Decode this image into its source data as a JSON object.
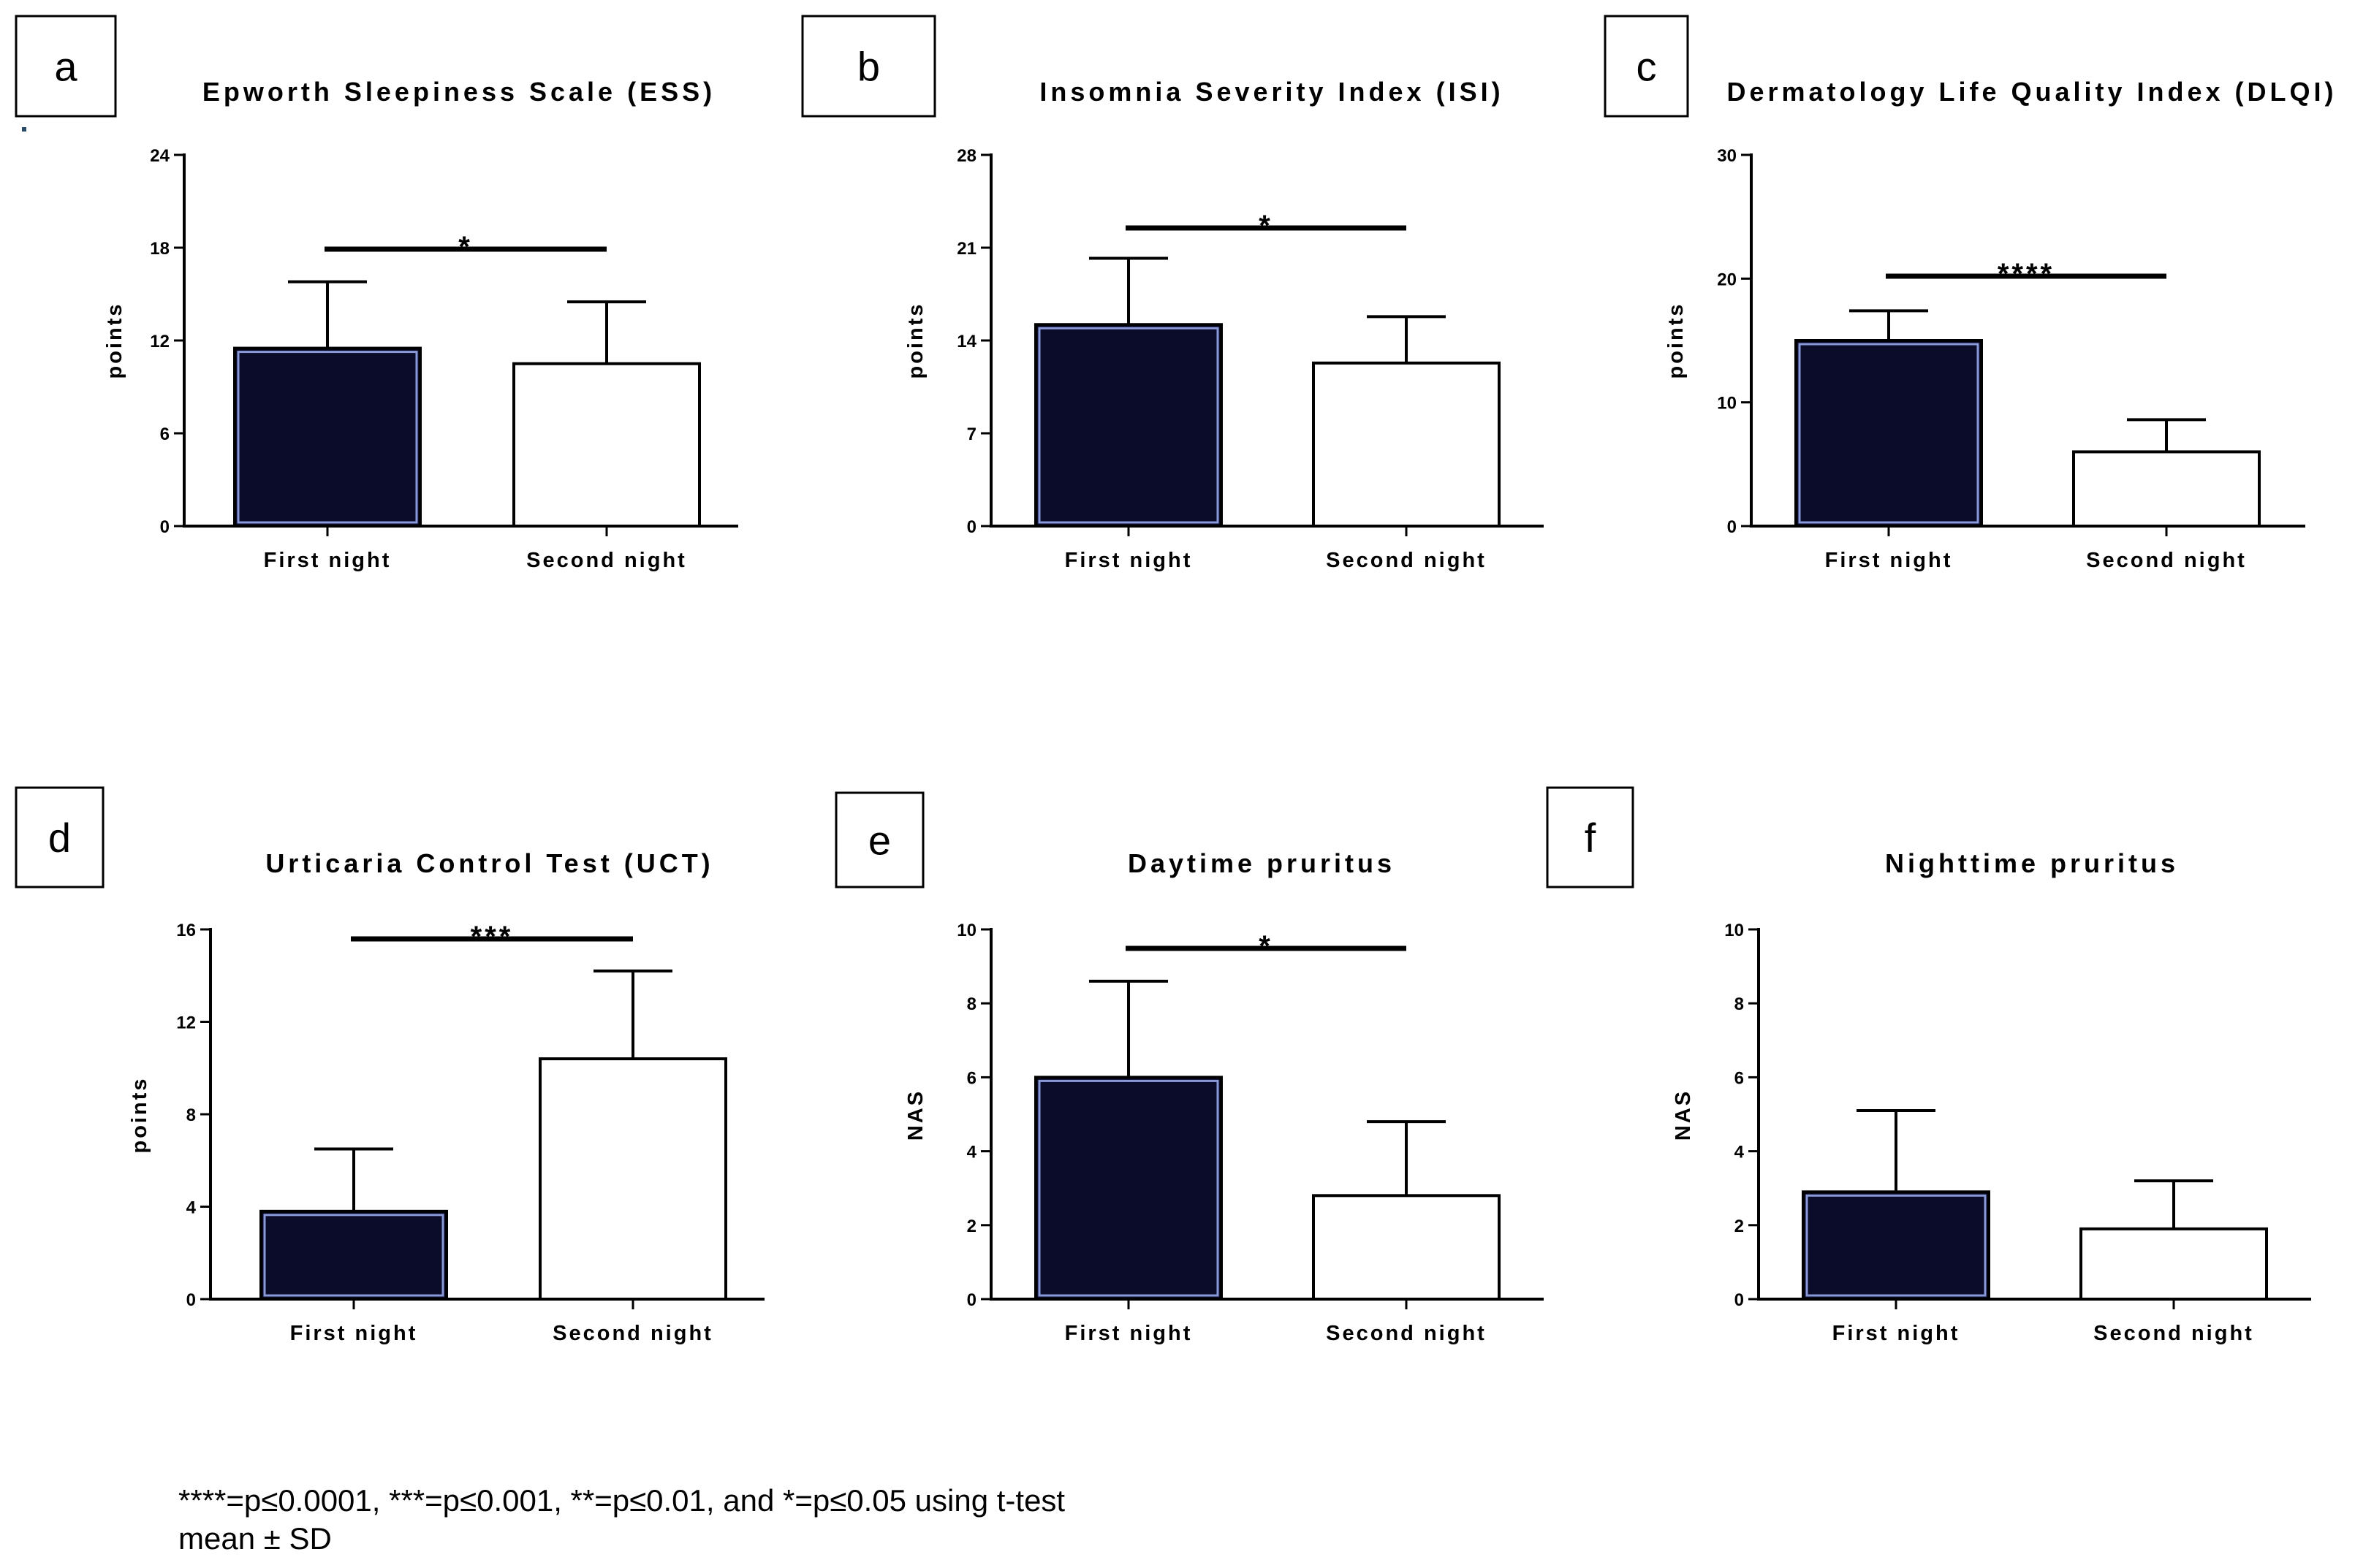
{
  "chart_data": [
    {
      "panel": "a",
      "type": "bar",
      "title": "Epworth Sleepiness Scale (ESS)",
      "ylabel": "points",
      "categories": [
        "First night",
        "Second night"
      ],
      "values": [
        11.5,
        10.5
      ],
      "errors": [
        4.3,
        4.0
      ],
      "ylim": [
        0,
        24
      ],
      "yticks": [
        "0",
        "6",
        "12",
        "18",
        "24"
      ],
      "significance": "*",
      "colors": [
        "#0b0b2a",
        "#ffffff"
      ]
    },
    {
      "panel": "b",
      "type": "bar",
      "title": "Insomnia Severity Index (ISI)",
      "ylabel": "points",
      "categories": [
        "First night",
        "Second night"
      ],
      "values": [
        15.2,
        12.3
      ],
      "errors": [
        5.0,
        3.5
      ],
      "ylim": [
        0,
        28
      ],
      "yticks": [
        "0",
        "7",
        "14",
        "21",
        "28"
      ],
      "significance": "*",
      "colors": [
        "#0b0b2a",
        "#ffffff"
      ]
    },
    {
      "panel": "c",
      "type": "bar",
      "title": "Dermatology Life Quality Index (DLQI)",
      "ylabel": "points",
      "categories": [
        "First night",
        "Second night"
      ],
      "values": [
        15.0,
        6.0
      ],
      "errors": [
        2.4,
        2.6
      ],
      "ylim": [
        0,
        30
      ],
      "yticks": [
        "0",
        "10",
        "20",
        "30"
      ],
      "significance": "****",
      "colors": [
        "#0b0b2a",
        "#ffffff"
      ]
    },
    {
      "panel": "d",
      "type": "bar",
      "title": "Urticaria Control Test (UCT)",
      "ylabel": "points",
      "categories": [
        "First night",
        "Second night"
      ],
      "values": [
        3.8,
        10.4
      ],
      "errors": [
        2.7,
        3.8
      ],
      "ylim": [
        0,
        16
      ],
      "yticks": [
        "0",
        "4",
        "8",
        "12",
        "16"
      ],
      "significance": "***",
      "colors": [
        "#0b0b2a",
        "#ffffff"
      ]
    },
    {
      "panel": "e",
      "type": "bar",
      "title": "Daytime pruritus",
      "ylabel": "NAS",
      "categories": [
        "First night",
        "Second night"
      ],
      "values": [
        6.0,
        2.8
      ],
      "errors": [
        2.6,
        2.0
      ],
      "ylim": [
        0,
        10
      ],
      "yticks": [
        "0",
        "2",
        "4",
        "6",
        "8",
        "10"
      ],
      "significance": "*",
      "colors": [
        "#0b0b2a",
        "#ffffff"
      ]
    },
    {
      "panel": "f",
      "type": "bar",
      "title": "Nighttime pruritus",
      "ylabel": "NAS",
      "categories": [
        "First night",
        "Second night"
      ],
      "values": [
        2.9,
        1.9
      ],
      "errors": [
        2.2,
        1.3
      ],
      "ylim": [
        0,
        10
      ],
      "yticks": [
        "0",
        "2",
        "4",
        "6",
        "8",
        "10"
      ],
      "significance": "",
      "colors": [
        "#0b0b2a",
        "#ffffff"
      ]
    }
  ],
  "footnote": {
    "line1": "****=p≤0.0001, ***=p≤0.001, **=p≤0.01, and *=p≤0.05 using t-test",
    "line2": "mean ± SD"
  }
}
